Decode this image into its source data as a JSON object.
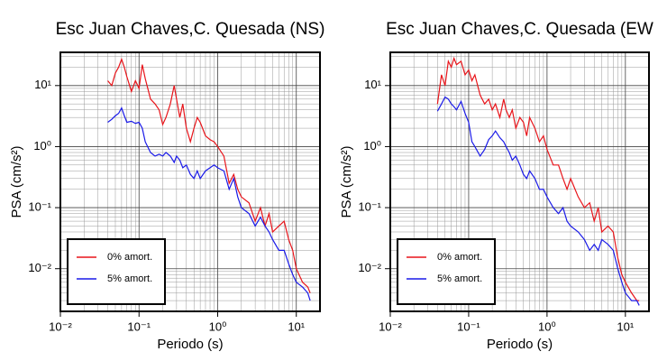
{
  "chart_data": [
    {
      "type": "line",
      "title": "Esc Juan Chaves,C. Quesada (NS)",
      "x_label": "Periodo (s)",
      "y_label": "PSA (cm/s²)",
      "log_x": true,
      "log_y": true,
      "grid": true,
      "legend": "lower left",
      "xlim": [
        0.01,
        20
      ],
      "ylim": [
        0.002,
        35
      ],
      "xticks": [
        {
          "value": 0.01,
          "label": "10⁻²"
        },
        {
          "value": 0.1,
          "label": "10⁻¹"
        },
        {
          "value": 1,
          "label": "10⁰"
        },
        {
          "value": 10,
          "label": "10¹"
        }
      ],
      "yticks": [
        {
          "value": 0.01,
          "label": "10⁻²"
        },
        {
          "value": 0.1,
          "label": "10⁻¹"
        },
        {
          "value": 1,
          "label": "10⁰"
        },
        {
          "value": 10,
          "label": "10¹"
        }
      ],
      "x": [
        0.04,
        0.045,
        0.05,
        0.055,
        0.06,
        0.065,
        0.07,
        0.08,
        0.09,
        0.1,
        0.11,
        0.12,
        0.14,
        0.16,
        0.18,
        0.2,
        0.22,
        0.25,
        0.28,
        0.3,
        0.33,
        0.36,
        0.4,
        0.45,
        0.5,
        0.55,
        0.6,
        0.7,
        0.8,
        0.9,
        1.0,
        1.2,
        1.4,
        1.6,
        1.8,
        2.0,
        2.5,
        3,
        3.5,
        4,
        4.5,
        5,
        6,
        7,
        8,
        9,
        10,
        12,
        14,
        15
      ],
      "series": [
        {
          "name": "0% amort.",
          "color": "#e8141a",
          "values": [
            12,
            10,
            16,
            20,
            27,
            20,
            14,
            8,
            12,
            9,
            22,
            13,
            6,
            5,
            4,
            2.3,
            3,
            5,
            10,
            6,
            3,
            5,
            2,
            1.2,
            2,
            3,
            2.5,
            1.5,
            1.3,
            1.2,
            1.0,
            0.7,
            0.25,
            0.35,
            0.2,
            0.15,
            0.12,
            0.06,
            0.1,
            0.05,
            0.08,
            0.04,
            0.05,
            0.06,
            0.03,
            0.02,
            0.01,
            0.006,
            0.005,
            0.004
          ]
        },
        {
          "name": "5% amort.",
          "color": "#1a1ae8",
          "values": [
            2.5,
            2.8,
            3.2,
            3.5,
            4.3,
            3.2,
            2.5,
            2.6,
            2.4,
            2.5,
            2,
            1.2,
            0.8,
            0.7,
            0.75,
            0.7,
            0.8,
            0.7,
            0.55,
            0.7,
            0.6,
            0.45,
            0.5,
            0.35,
            0.3,
            0.4,
            0.3,
            0.4,
            0.45,
            0.5,
            0.45,
            0.4,
            0.2,
            0.3,
            0.15,
            0.1,
            0.08,
            0.05,
            0.07,
            0.05,
            0.04,
            0.03,
            0.02,
            0.02,
            0.012,
            0.008,
            0.006,
            0.005,
            0.004,
            0.003
          ]
        }
      ]
    },
    {
      "type": "line",
      "title": "Esc Juan Chaves,C. Quesada (EW",
      "x_label": "Periodo (s)",
      "y_label": "PSA (cm/s²)",
      "log_x": true,
      "log_y": true,
      "grid": true,
      "legend": "lower left",
      "xlim": [
        0.01,
        20
      ],
      "ylim": [
        0.002,
        35
      ],
      "xticks": [
        {
          "value": 0.01,
          "label": "10⁻²"
        },
        {
          "value": 0.1,
          "label": "10⁻¹"
        },
        {
          "value": 1,
          "label": "10⁰"
        },
        {
          "value": 10,
          "label": "10¹"
        }
      ],
      "yticks": [
        {
          "value": 0.01,
          "label": "10⁻²"
        },
        {
          "value": 0.1,
          "label": "10⁻¹"
        },
        {
          "value": 1,
          "label": "10⁰"
        },
        {
          "value": 10,
          "label": "10¹"
        }
      ],
      "x": [
        0.04,
        0.045,
        0.05,
        0.055,
        0.06,
        0.065,
        0.07,
        0.08,
        0.09,
        0.1,
        0.11,
        0.12,
        0.14,
        0.16,
        0.18,
        0.2,
        0.22,
        0.25,
        0.28,
        0.3,
        0.33,
        0.36,
        0.4,
        0.45,
        0.5,
        0.55,
        0.6,
        0.7,
        0.8,
        0.9,
        1.0,
        1.2,
        1.4,
        1.6,
        1.8,
        2.0,
        2.5,
        3,
        3.5,
        4,
        4.5,
        5,
        6,
        7,
        8,
        9,
        10,
        12,
        14,
        15
      ],
      "series": [
        {
          "name": "0% amort.",
          "color": "#e8141a",
          "values": [
            5,
            15,
            10,
            25,
            20,
            28,
            22,
            25,
            15,
            18,
            12,
            15,
            7,
            5,
            6,
            4,
            5,
            3,
            6,
            4,
            3,
            4,
            2,
            3,
            2.5,
            1.5,
            3,
            2,
            1.2,
            1.5,
            0.9,
            0.5,
            0.5,
            0.3,
            0.2,
            0.3,
            0.15,
            0.1,
            0.12,
            0.06,
            0.1,
            0.04,
            0.05,
            0.04,
            0.015,
            0.008,
            0.006,
            0.004,
            0.003,
            0.003
          ]
        },
        {
          "name": "5% amort.",
          "color": "#1a1ae8",
          "values": [
            3.8,
            5,
            6.5,
            6,
            5,
            4.5,
            4,
            5.5,
            3.5,
            2.5,
            1.2,
            1,
            0.7,
            0.9,
            1.3,
            1.5,
            1.8,
            1.4,
            1.2,
            1,
            0.8,
            0.6,
            0.7,
            0.5,
            0.35,
            0.3,
            0.4,
            0.3,
            0.2,
            0.2,
            0.15,
            0.1,
            0.08,
            0.1,
            0.06,
            0.05,
            0.04,
            0.03,
            0.02,
            0.025,
            0.02,
            0.03,
            0.025,
            0.02,
            0.01,
            0.006,
            0.004,
            0.003,
            0.003,
            0.0025
          ]
        }
      ]
    }
  ]
}
